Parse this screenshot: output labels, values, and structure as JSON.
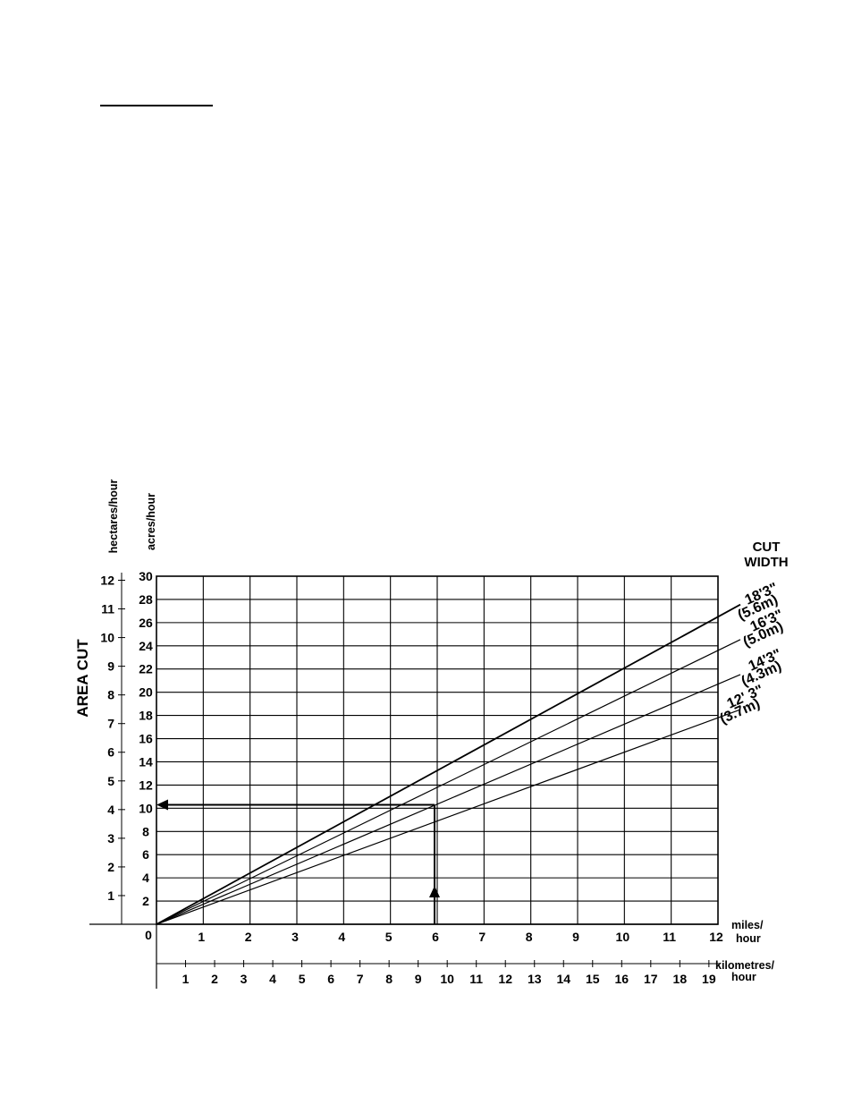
{
  "chart_data": {
    "type": "line",
    "ylabel": "AREA CUT",
    "y_units_left": "hectares/hour",
    "y_units_right": "acres/hour",
    "legend_title_line1": "CUT",
    "legend_title_line2": "WIDTH",
    "x_units_miles_line1": "miles/",
    "x_units_miles_line2": "hour",
    "x_units_km_line1": "kilometres/",
    "x_units_km_line2": "hour",
    "origin_label": "0",
    "xlim": [
      0,
      12
    ],
    "ylim": [
      0,
      30
    ],
    "x_ticks_miles": [
      "1",
      "2",
      "3",
      "4",
      "5",
      "6",
      "7",
      "8",
      "9",
      "10",
      "11",
      "12"
    ],
    "x_ticks_km": [
      "1",
      "2",
      "3",
      "4",
      "5",
      "6",
      "7",
      "8",
      "9",
      "10",
      "11",
      "12",
      "13",
      "14",
      "15",
      "16",
      "17",
      "18",
      "19"
    ],
    "y_ticks_acres": [
      "2",
      "4",
      "6",
      "8",
      "10",
      "12",
      "14",
      "16",
      "18",
      "20",
      "22",
      "24",
      "26",
      "28",
      "30"
    ],
    "y_ticks_hectares": [
      "1",
      "2",
      "3",
      "4",
      "5",
      "6",
      "7",
      "8",
      "9",
      "10",
      "11",
      "12"
    ],
    "grid": true,
    "legend_position": "right",
    "series": [
      {
        "name": "18'3\"",
        "name_metric": "(5.6m)",
        "x": [
          0,
          12
        ],
        "y": [
          0,
          26.5
        ]
      },
      {
        "name": "16'3\"",
        "name_metric": "(5.0m)",
        "x": [
          0,
          12
        ],
        "y": [
          0,
          23.6
        ]
      },
      {
        "name": "14'3\"",
        "name_metric": "(4.3m)",
        "x": [
          0,
          12
        ],
        "y": [
          0,
          20.7
        ]
      },
      {
        "name": "12' 3\"",
        "name_metric": "(3.7m)",
        "x": [
          0,
          12
        ],
        "y": [
          0,
          17.8
        ]
      }
    ],
    "example_reading": {
      "speed_miles_per_hour": 6,
      "area_acres_per_hour": 10.3
    }
  }
}
